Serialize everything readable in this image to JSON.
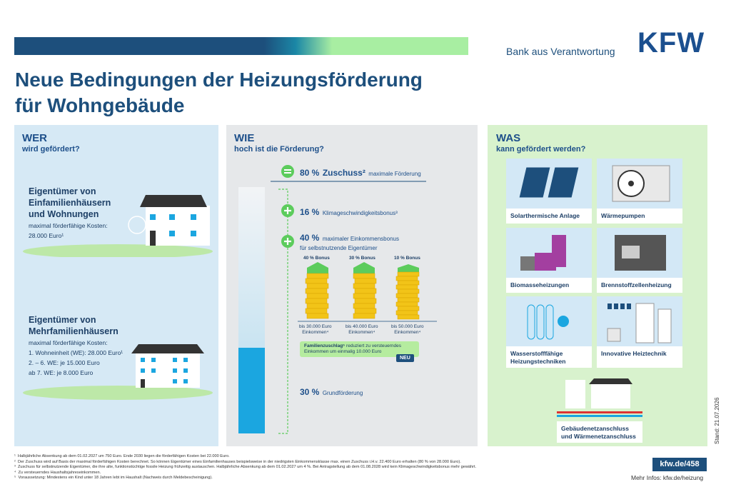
{
  "brand": {
    "tagline": "Bank aus Verantwortung",
    "logo": "KFW"
  },
  "title": {
    "lines": [
      "Neue Bedingungen der Heizungsförderung",
      "für Wohngebäude"
    ]
  },
  "wer": {
    "heading": "WER",
    "subheading": "wird gefördert?",
    "groups": [
      {
        "title": [
          "Eigentümer von",
          "Einfamilienhäusern",
          "und Wohnungen"
        ],
        "details": [
          "maximal förderfähige Kosten:",
          "28.000 Euro¹"
        ]
      },
      {
        "title": [
          "Eigentümer von",
          "Mehrfamilienhäusern"
        ],
        "details": [
          "maximal förderfähige Kosten:",
          "1. Wohneinheit (WE): 28.000 Euro¹",
          "2. – 6. WE: je 15.000 Euro",
          "ab 7. WE: je 8.000 Euro"
        ]
      }
    ]
  },
  "wie": {
    "heading": "WIE",
    "subheading": "hoch ist die Förderung?",
    "total": {
      "percent": "80 %",
      "label": "Zuschuss²",
      "note": "maximale Förderung"
    },
    "items": [
      {
        "percent": "16 %",
        "label": "Klimageschwindigkeitsbonus³"
      },
      {
        "percent": "40 %",
        "label": "maximaler Einkommensbonus",
        "note": "für selbstnutzende Eigentümer"
      },
      {
        "percent": "30 %",
        "label": "Grundförderung"
      }
    ],
    "bonus": [
      {
        "label": "40 % Bonus",
        "income": [
          "bis 30.000 Euro",
          "Einkommen⁴"
        ]
      },
      {
        "label": "30 % Bonus",
        "income": [
          "bis 40.000 Euro",
          "Einkommen⁴"
        ]
      },
      {
        "label": "10 % Bonus",
        "income": [
          "bis 50.000 Euro",
          "Einkommen⁴"
        ]
      }
    ],
    "family": {
      "label": "Familienzuschlag⁵",
      "text": [
        "reduziert zu versteuerndes",
        "Einkommen um einmalig 10.000 Euro"
      ],
      "badge": "NEU"
    }
  },
  "was": {
    "heading": "WAS",
    "subheading": "kann gefördert werden?",
    "items": [
      [
        "Solarthermische Anlage"
      ],
      [
        "Wärmepumpen"
      ],
      [
        "Biomasseheizungen"
      ],
      [
        "Brennstoffzellenheizung"
      ],
      [
        "Wasserstofffähige",
        "Heizungstechniken"
      ],
      [
        "Innovative Heiztechnik"
      ],
      [
        "Gebäudenetzanschluss",
        "und Wärmenetzanschluss"
      ]
    ]
  },
  "stand": "Stand: 21.07.2026",
  "footnotes": [
    {
      "marker": "¹",
      "text": "Halbjährliche Absenkung ab dem 01.02.2027 um 750 Euro. Ende 2030 liegen die förderfähigen Kosten bei 22.000 Euro."
    },
    {
      "marker": "²",
      "text": "Der Zuschuss wird auf Basis der maximal förderfähigen Kosten berechnet. So können Eigentümer eines Einfamilienhauses beispielsweise in der niedrigsten Einkommensklasse max. einen Zuschuss i.H.v. 22.400 Euro erhalten (80 % von 28.000 Euro)."
    },
    {
      "marker": "³",
      "text": "Zuschuss für selbstnutzende Eigentümer, die ihre alte, funktionstüchtige fossile Heizung frühzeitig austauschen. Halbjährliche Absenkung ab dem 01.02.2027 um 4 %. Bei Antragstellung ab dem 01.08.2028 wird kein Klimageschwindigkeitsbonus mehr gewährt."
    },
    {
      "marker": "⁴",
      "text": "Zu versteuerndes Haushaltsjahreseinkommen."
    },
    {
      "marker": "⁵",
      "text": "Voraussetzung: Mindestens ein Kind unter 18 Jahren lebt im Haushalt (Nachweis durch Meldebescheinigung)."
    }
  ],
  "link": {
    "url": "kfw.de/458",
    "more": "Mehr Infos: kfw.de/heizung"
  }
}
